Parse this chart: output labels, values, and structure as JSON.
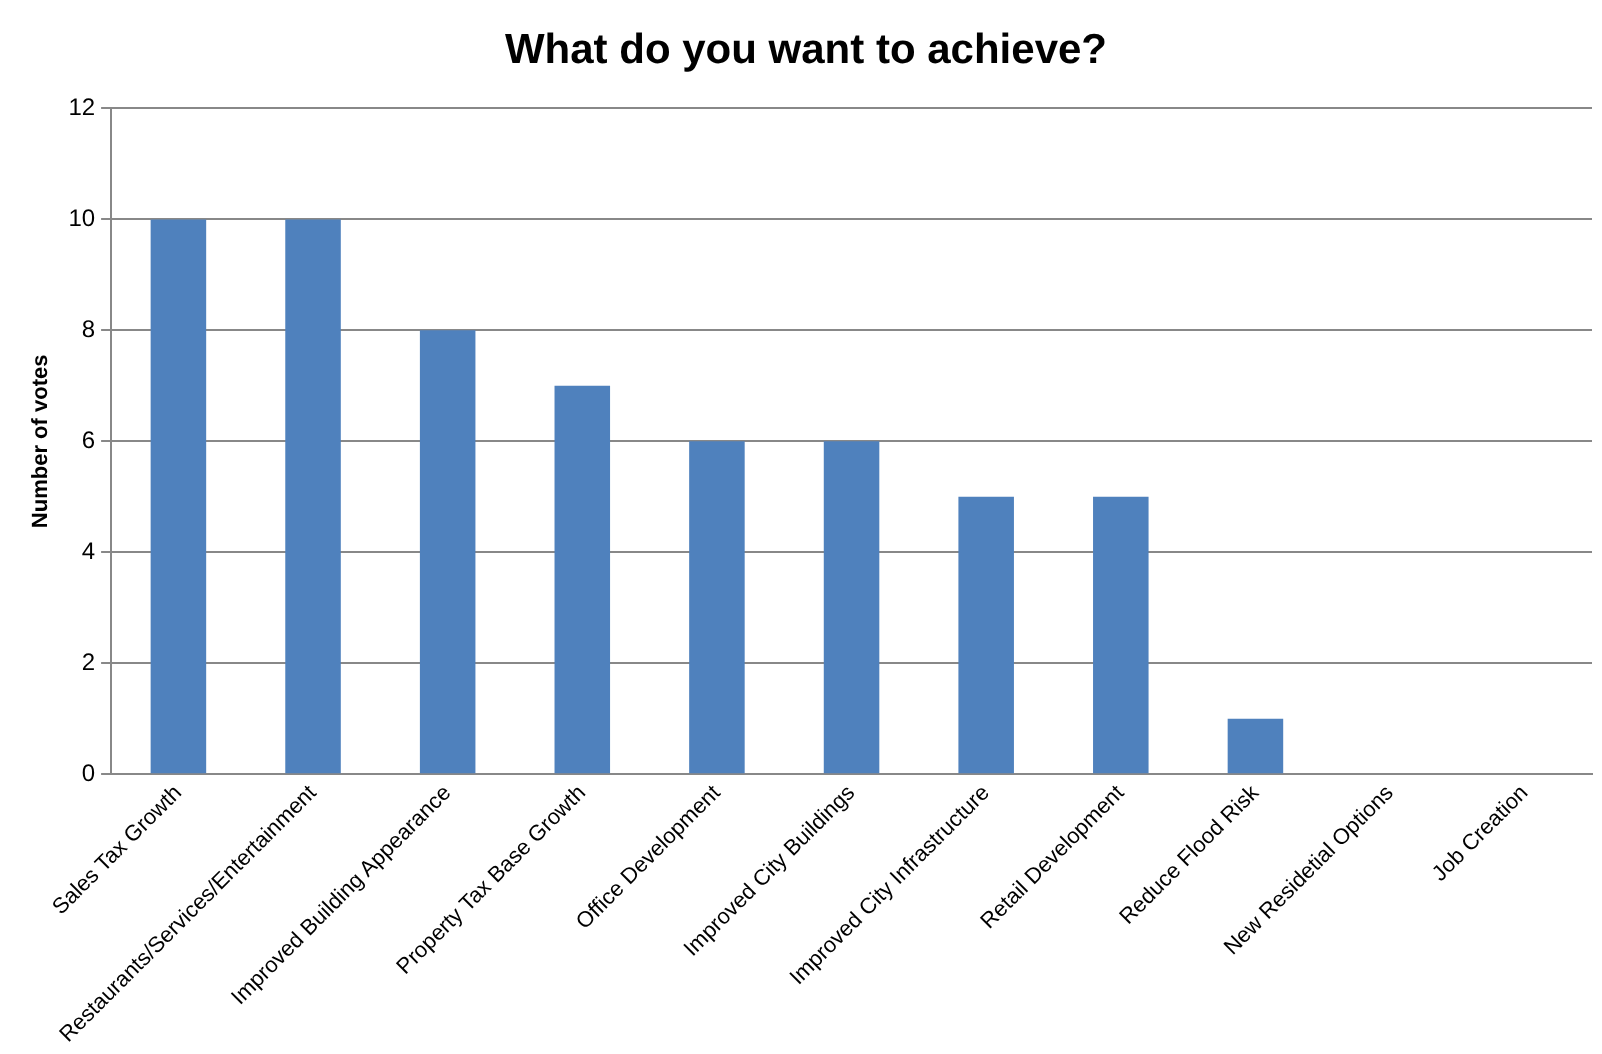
{
  "chart_data": {
    "type": "bar",
    "title": "What do you want to achieve?",
    "ylabel": "Number of votes",
    "categories": [
      "Sales Tax Growth",
      "Restaurants/Services/Entertainment",
      "Improved Building Appearance",
      "Property Tax Base Growth",
      "Office Development",
      "Improved City Buildings",
      "Improved City Infrastructure",
      "Retail Development",
      "Reduce Flood Risk",
      "New Residetial Options",
      "Job Creation"
    ],
    "values": [
      10,
      10,
      8,
      7,
      6,
      6,
      5,
      5,
      1,
      0,
      0
    ],
    "color": "#4f81bd",
    "ylim": [
      0,
      12
    ],
    "yticks": [
      0,
      2,
      4,
      6,
      8,
      10,
      12
    ],
    "grid": "y"
  }
}
